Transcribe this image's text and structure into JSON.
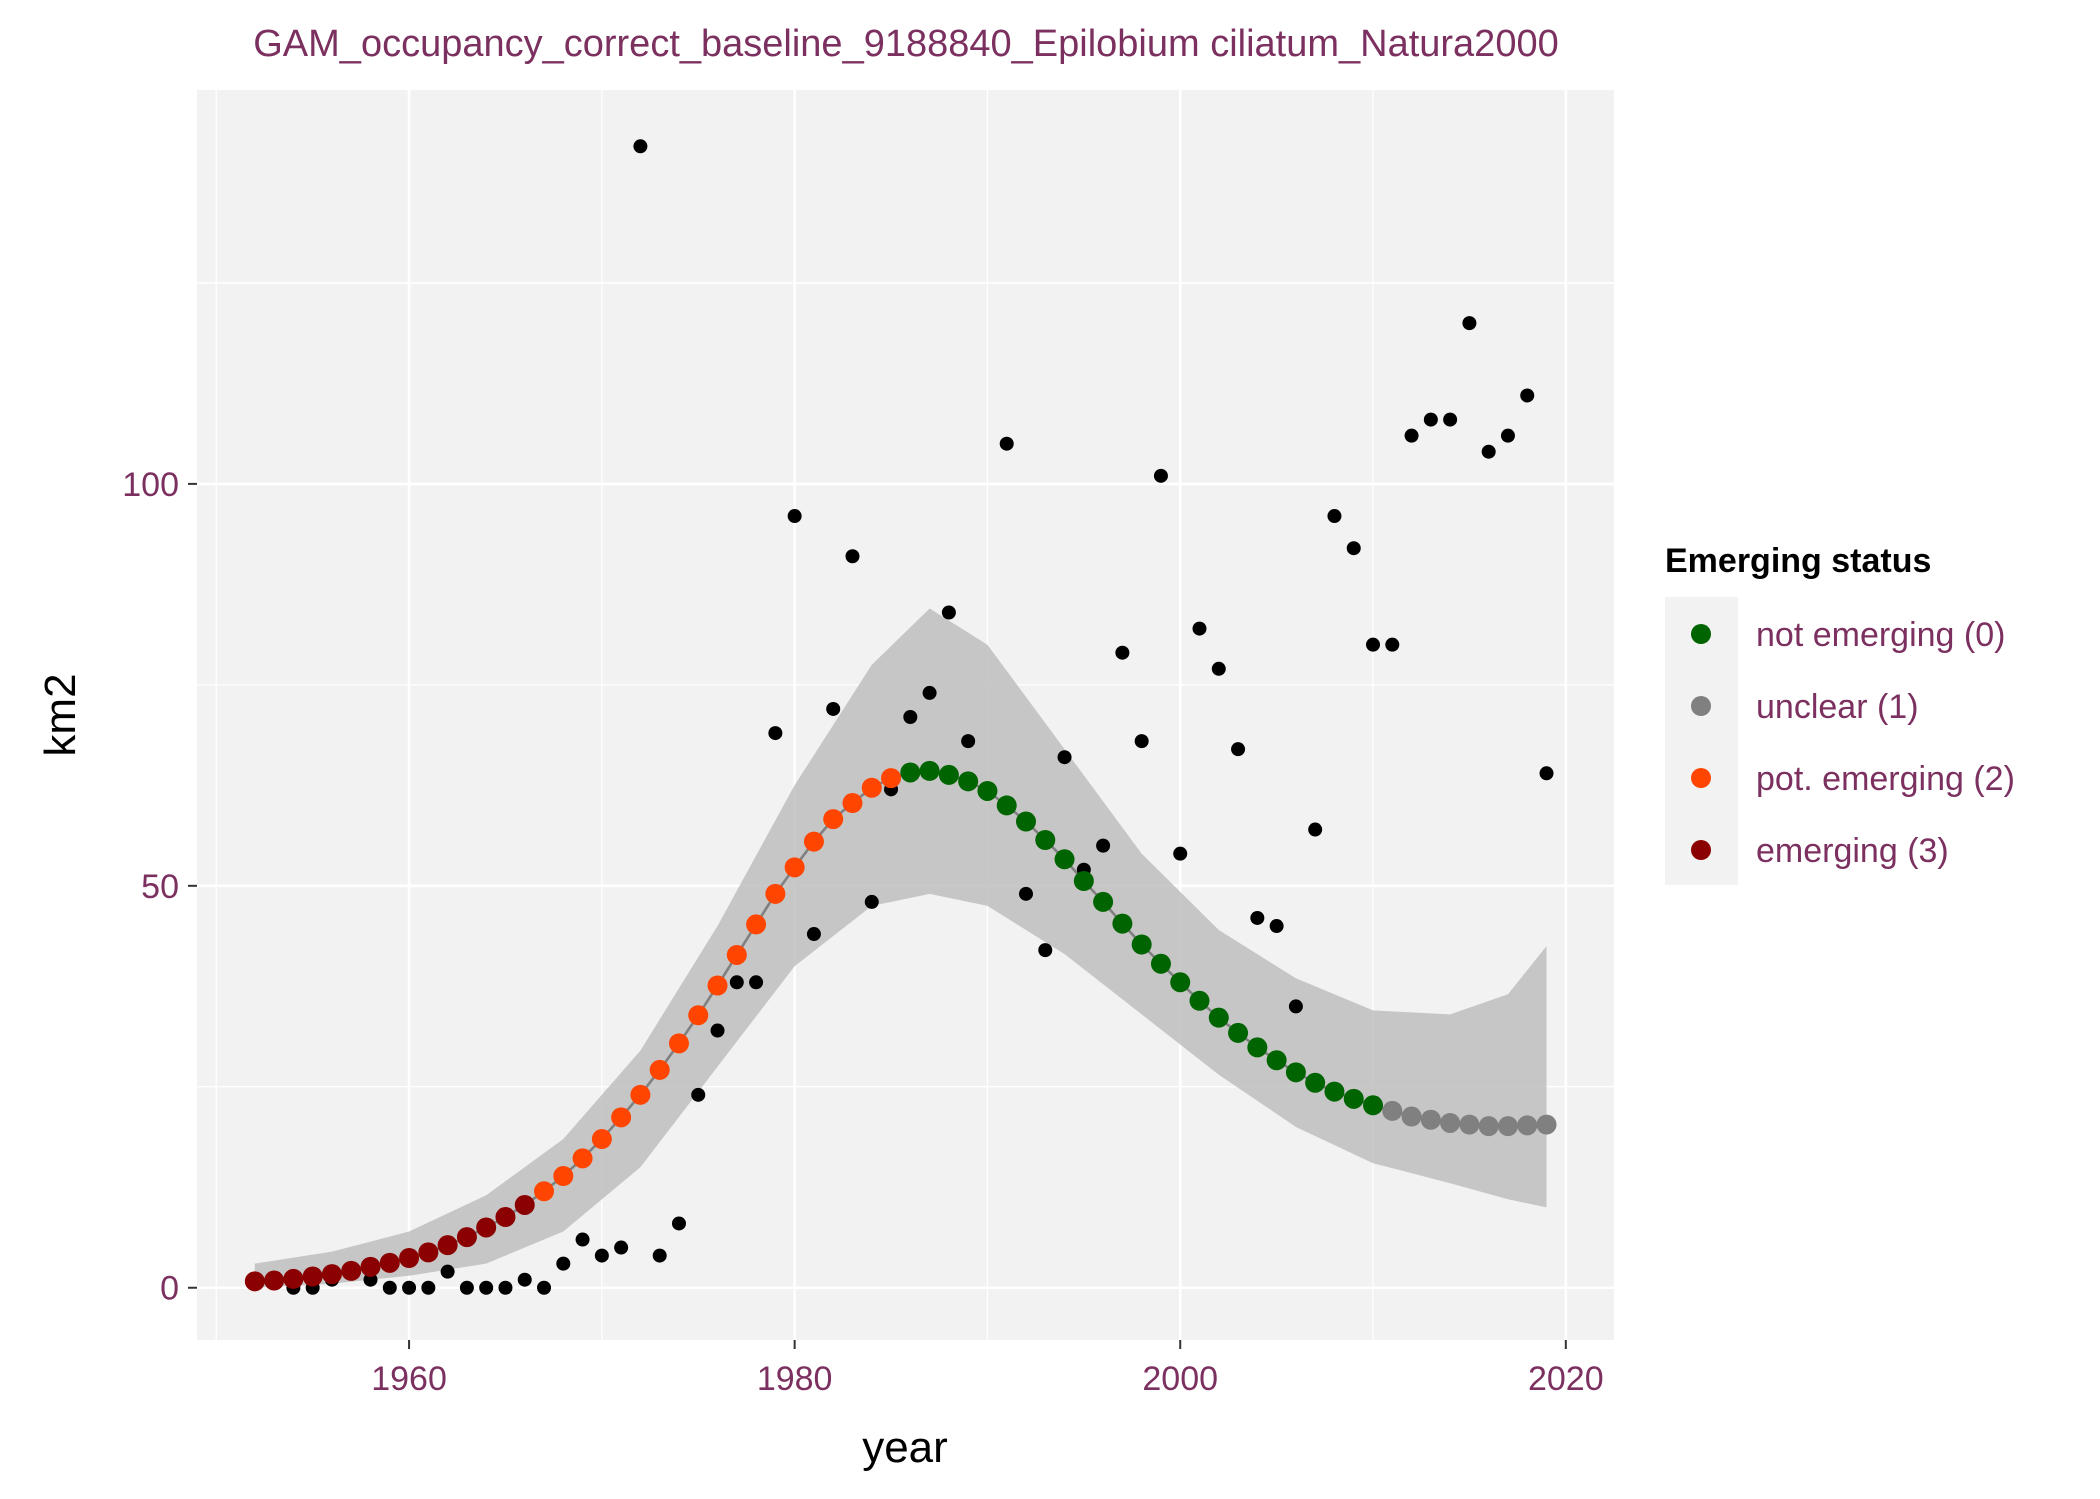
{
  "chart_data": {
    "type": "scatter",
    "title": "GAM_occupancy_correct_baseline_9188840_Epilobium ciliatum_Natura2000",
    "xlabel": "year",
    "ylabel": "km2",
    "xlim": [
      1949,
      2022.5
    ],
    "ylim": [
      -6.5,
      149
    ],
    "x_ticks": [
      1960,
      1980,
      2000,
      2020
    ],
    "y_ticks": [
      0,
      50,
      100
    ],
    "grid": true,
    "legend": {
      "title": "Emerging status",
      "placement": "right",
      "entries": [
        {
          "label": "not emerging (0)",
          "color": "#006400"
        },
        {
          "label": "unclear (1)",
          "color": "#808080"
        },
        {
          "label": "pot. emerging (2)",
          "color": "#FF4500"
        },
        {
          "label": "emerging (3)",
          "color": "#8B0000"
        }
      ]
    },
    "colors": {
      "title": "#7B3060",
      "tick_label": "#7B3060",
      "panel": "#F2F2F2",
      "grid": "#FFFFFF",
      "ribbon": "#BEBEBE",
      "observed": "#000000",
      "fit_line": "#808080"
    },
    "observed": {
      "x": [
        1952,
        1953,
        1954,
        1955,
        1956,
        1957,
        1958,
        1959,
        1960,
        1961,
        1962,
        1963,
        1964,
        1965,
        1966,
        1967,
        1968,
        1969,
        1970,
        1971,
        1972,
        1973,
        1974,
        1975,
        1976,
        1977,
        1978,
        1979,
        1980,
        1981,
        1982,
        1983,
        1984,
        1985,
        1986,
        1987,
        1988,
        1989,
        1990,
        1991,
        1992,
        1993,
        1994,
        1995,
        1996,
        1997,
        1998,
        1999,
        2000,
        2001,
        2002,
        2003,
        2004,
        2005,
        2006,
        2007,
        2008,
        2009,
        2010,
        2011,
        2012,
        2013,
        2014,
        2015,
        2016,
        2017,
        2018,
        2019
      ],
      "y": [
        1,
        1,
        0,
        0,
        1,
        2,
        1,
        0,
        0,
        0,
        2,
        0,
        0,
        0,
        1,
        0,
        3,
        6,
        4,
        5,
        142,
        4,
        8,
        24,
        32,
        38,
        38,
        69,
        96,
        44,
        72,
        91,
        48,
        62,
        71,
        74,
        84,
        68,
        62,
        105,
        49,
        42,
        66,
        52,
        55,
        79,
        68,
        101,
        54,
        82,
        77,
        67,
        46,
        45,
        35,
        57,
        96,
        92,
        80,
        80,
        106,
        108,
        108,
        120,
        104,
        106,
        111,
        64
      ]
    },
    "fitted": {
      "x": [
        1952,
        1953,
        1954,
        1955,
        1956,
        1957,
        1958,
        1959,
        1960,
        1961,
        1962,
        1963,
        1964,
        1965,
        1966,
        1967,
        1968,
        1969,
        1970,
        1971,
        1972,
        1973,
        1974,
        1975,
        1976,
        1977,
        1978,
        1979,
        1980,
        1981,
        1982,
        1983,
        1984,
        1985,
        1986,
        1987,
        1988,
        1989,
        1990,
        1991,
        1992,
        1993,
        1994,
        1995,
        1996,
        1997,
        1998,
        1999,
        2000,
        2001,
        2002,
        2003,
        2004,
        2005,
        2006,
        2007,
        2008,
        2009,
        2010,
        2011,
        2012,
        2013,
        2014,
        2015,
        2016,
        2017,
        2018,
        2019
      ],
      "y": [
        0.8,
        0.9,
        1.1,
        1.4,
        1.7,
        2.1,
        2.6,
        3.1,
        3.7,
        4.4,
        5.3,
        6.3,
        7.5,
        8.8,
        10.3,
        12.0,
        13.9,
        16.1,
        18.5,
        21.2,
        24.0,
        27.1,
        30.4,
        33.9,
        37.6,
        41.4,
        45.2,
        49.0,
        52.3,
        55.5,
        58.3,
        60.3,
        62.2,
        63.4,
        64.1,
        64.3,
        63.8,
        63.0,
        61.8,
        60.0,
        58.0,
        55.7,
        53.3,
        50.6,
        48.0,
        45.3,
        42.7,
        40.3,
        38.0,
        35.7,
        33.6,
        31.7,
        29.9,
        28.3,
        26.8,
        25.5,
        24.4,
        23.5,
        22.7,
        22.0,
        21.3,
        20.9,
        20.5,
        20.3,
        20.1,
        20.1,
        20.2,
        20.3
      ],
      "status": [
        3,
        3,
        3,
        3,
        3,
        3,
        3,
        3,
        3,
        3,
        3,
        3,
        3,
        3,
        3,
        2,
        2,
        2,
        2,
        2,
        2,
        2,
        2,
        2,
        2,
        2,
        2,
        2,
        2,
        2,
        2,
        2,
        2,
        2,
        0,
        0,
        0,
        0,
        0,
        0,
        0,
        0,
        0,
        0,
        0,
        0,
        0,
        0,
        0,
        0,
        0,
        0,
        0,
        0,
        0,
        0,
        0,
        0,
        0,
        1,
        1,
        1,
        1,
        1,
        1,
        1,
        1,
        1
      ]
    },
    "ribbon": {
      "x": [
        1952,
        1956,
        1960,
        1964,
        1968,
        1972,
        1976,
        1980,
        1984,
        1987,
        1990,
        1994,
        1998,
        2002,
        2006,
        2010,
        2014,
        2017,
        2019
      ],
      "upper": [
        3,
        4.5,
        7,
        11.5,
        18.5,
        29.5,
        45,
        62.5,
        77.5,
        84.5,
        80,
        67,
        54,
        44.5,
        38.5,
        34.5,
        34,
        36.5,
        42.5
      ],
      "lower": [
        0,
        0.5,
        1.5,
        3,
        7,
        15,
        27.5,
        40,
        47.5,
        49,
        47.5,
        41.5,
        34,
        26.5,
        20,
        15.5,
        13,
        11,
        10
      ]
    }
  }
}
